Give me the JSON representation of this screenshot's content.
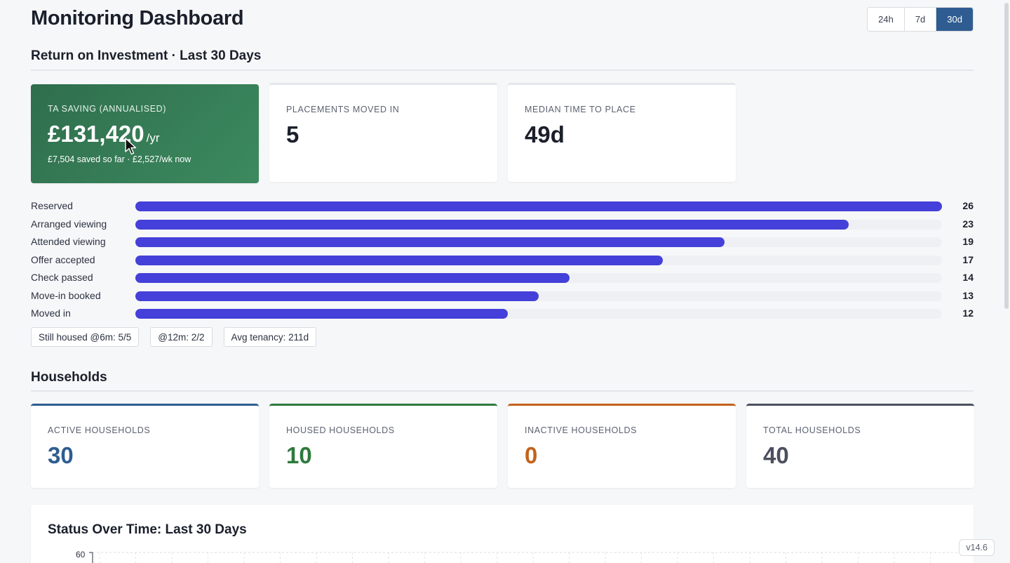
{
  "header": {
    "title": "Monitoring Dashboard",
    "ranges": [
      {
        "label": "24h",
        "active": false
      },
      {
        "label": "7d",
        "active": false
      },
      {
        "label": "30d",
        "active": true
      }
    ]
  },
  "roi": {
    "section_title": "Return on Investment · Last 30 Days",
    "cards": {
      "ta_saving": {
        "label": "TA SAVING (ANNUALISED)",
        "value": "£131,420",
        "unit": "/yr",
        "sub": "£7,504 saved so far · £2,527/wk now"
      },
      "placements": {
        "label": "PLACEMENTS MOVED IN",
        "value": "5"
      },
      "median_time": {
        "label": "MEDIAN TIME TO PLACE",
        "value": "49d"
      }
    },
    "funnel_max": 26,
    "funnel": [
      {
        "label": "Reserved",
        "count": 26
      },
      {
        "label": "Arranged viewing",
        "count": 23
      },
      {
        "label": "Attended viewing",
        "count": 19
      },
      {
        "label": "Offer accepted",
        "count": 17
      },
      {
        "label": "Check passed",
        "count": 14
      },
      {
        "label": "Move-in booked",
        "count": 13
      },
      {
        "label": "Moved in",
        "count": 12
      }
    ],
    "chips": [
      "Still housed @6m: 5/5",
      "@12m: 2/2",
      "Avg tenancy: 211d"
    ]
  },
  "households": {
    "section_title": "Households",
    "cards": {
      "active": {
        "label": "ACTIVE HOUSEHOLDS",
        "value": "30",
        "color": "#2f5d91"
      },
      "housed": {
        "label": "HOUSED HOUSEHOLDS",
        "value": "10",
        "color": "#2e7a3d"
      },
      "inactive": {
        "label": "INACTIVE HOUSEHOLDS",
        "value": "0",
        "color": "#c4621c"
      },
      "total": {
        "label": "TOTAL HOUSEHOLDS",
        "value": "40",
        "color": "#4b5060"
      }
    }
  },
  "status_chart": {
    "title": "Status Over Time: Last 30 Days",
    "y_top_tick": "60"
  },
  "colors": {
    "accent": "#2f5d91",
    "funnel_bar": "#4440d9",
    "saving_card": "#2f6e4d"
  },
  "version": "v14.6"
}
